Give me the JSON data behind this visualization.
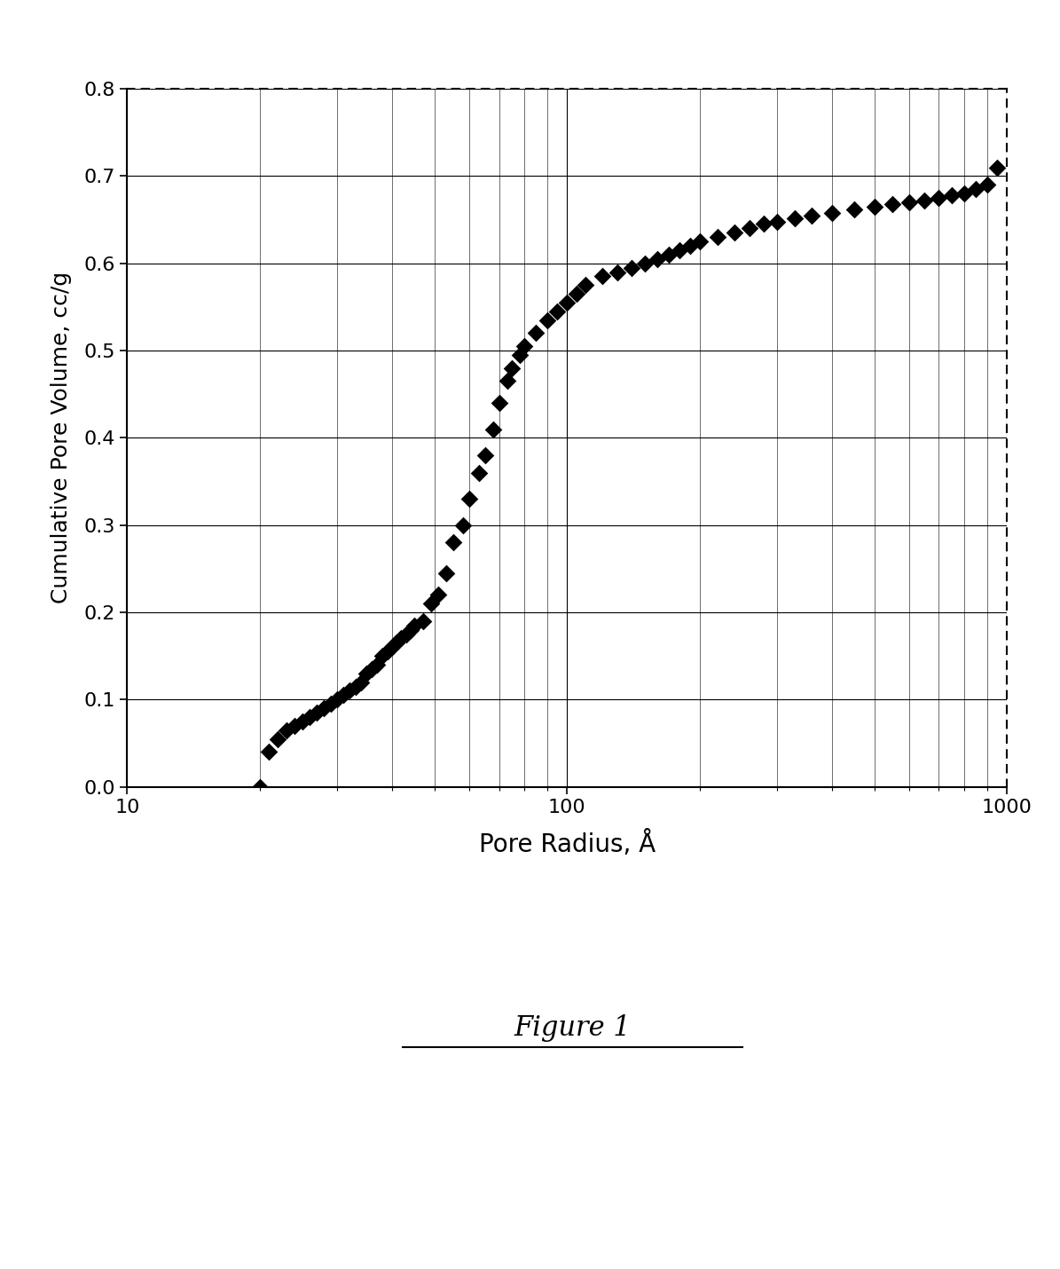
{
  "x": [
    20,
    21,
    22,
    23,
    24,
    25,
    26,
    27,
    28,
    29,
    30,
    31,
    32,
    33,
    34,
    35,
    36,
    37,
    38,
    39,
    40,
    41,
    42,
    43,
    44,
    45,
    47,
    49,
    51,
    53,
    55,
    58,
    60,
    63,
    65,
    68,
    70,
    73,
    75,
    78,
    80,
    85,
    90,
    95,
    100,
    105,
    110,
    120,
    130,
    140,
    150,
    160,
    170,
    180,
    190,
    200,
    220,
    240,
    260,
    280,
    300,
    330,
    360,
    400,
    450,
    500,
    550,
    600,
    650,
    700,
    750,
    800,
    850,
    900,
    950
  ],
  "y": [
    0.0,
    0.04,
    0.055,
    0.065,
    0.07,
    0.075,
    0.08,
    0.085,
    0.09,
    0.095,
    0.1,
    0.105,
    0.11,
    0.115,
    0.12,
    0.13,
    0.135,
    0.14,
    0.15,
    0.155,
    0.16,
    0.165,
    0.17,
    0.175,
    0.18,
    0.185,
    0.19,
    0.21,
    0.22,
    0.245,
    0.28,
    0.3,
    0.33,
    0.36,
    0.38,
    0.41,
    0.44,
    0.465,
    0.48,
    0.495,
    0.505,
    0.52,
    0.535,
    0.545,
    0.555,
    0.565,
    0.575,
    0.585,
    0.59,
    0.595,
    0.6,
    0.605,
    0.61,
    0.615,
    0.62,
    0.625,
    0.63,
    0.635,
    0.64,
    0.645,
    0.648,
    0.652,
    0.655,
    0.658,
    0.662,
    0.665,
    0.668,
    0.67,
    0.672,
    0.675,
    0.678,
    0.68,
    0.685,
    0.69,
    0.71
  ],
  "xlabel": "Pore Radius, Å",
  "ylabel": "Cumulative Pore Volume, cc/g",
  "xlim": [
    10,
    1000
  ],
  "ylim": [
    0,
    0.8
  ],
  "yticks": [
    0,
    0.1,
    0.2,
    0.3,
    0.4,
    0.5,
    0.6,
    0.7,
    0.8
  ],
  "xticks_major": [
    10,
    100,
    1000
  ],
  "figure_label": "Figure 1",
  "marker_color": "#000000",
  "background_color": "#ffffff",
  "grid_color": "#000000",
  "xlabel_fontsize": 20,
  "ylabel_fontsize": 18,
  "tick_fontsize": 16,
  "fig_label_fontsize": 22
}
